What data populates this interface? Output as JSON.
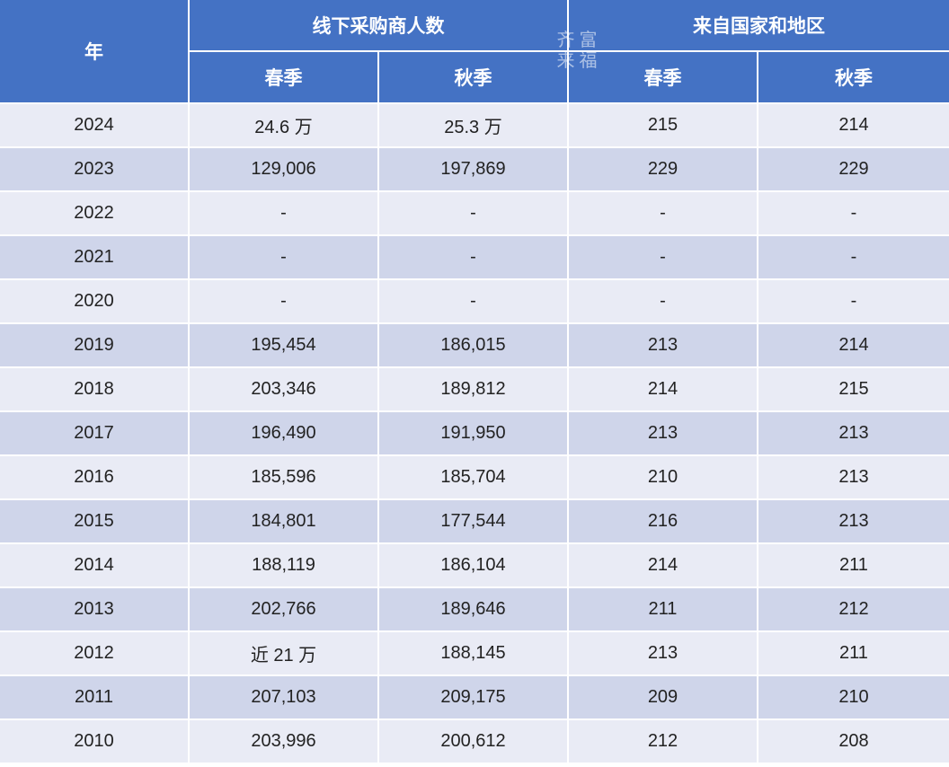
{
  "header": {
    "year": "年",
    "group_buyers": "线下采购商人数",
    "group_countries": "来自国家和地区",
    "spring": "春季",
    "autumn": "秋季"
  },
  "watermark": [
    "齐",
    "富",
    "来",
    "福"
  ],
  "rows": [
    {
      "year": "2024",
      "buyers_spring": "24.6 万",
      "buyers_autumn": "25.3 万",
      "countries_spring": "215",
      "countries_autumn": "214"
    },
    {
      "year": "2023",
      "buyers_spring": "129,006",
      "buyers_autumn": "197,869",
      "countries_spring": "229",
      "countries_autumn": "229"
    },
    {
      "year": "2022",
      "buyers_spring": "-",
      "buyers_autumn": "-",
      "countries_spring": "-",
      "countries_autumn": "-"
    },
    {
      "year": "2021",
      "buyers_spring": "-",
      "buyers_autumn": "-",
      "countries_spring": "-",
      "countries_autumn": "-"
    },
    {
      "year": "2020",
      "buyers_spring": "-",
      "buyers_autumn": "-",
      "countries_spring": "-",
      "countries_autumn": "-"
    },
    {
      "year": "2019",
      "buyers_spring": "195,454",
      "buyers_autumn": "186,015",
      "countries_spring": "213",
      "countries_autumn": "214"
    },
    {
      "year": "2018",
      "buyers_spring": "203,346",
      "buyers_autumn": "189,812",
      "countries_spring": "214",
      "countries_autumn": "215"
    },
    {
      "year": "2017",
      "buyers_spring": "196,490",
      "buyers_autumn": "191,950",
      "countries_spring": "213",
      "countries_autumn": "213"
    },
    {
      "year": "2016",
      "buyers_spring": "185,596",
      "buyers_autumn": "185,704",
      "countries_spring": "210",
      "countries_autumn": "213"
    },
    {
      "year": "2015",
      "buyers_spring": "184,801",
      "buyers_autumn": "177,544",
      "countries_spring": "216",
      "countries_autumn": "213"
    },
    {
      "year": "2014",
      "buyers_spring": "188,119",
      "buyers_autumn": "186,104",
      "countries_spring": "214",
      "countries_autumn": "211"
    },
    {
      "year": "2013",
      "buyers_spring": "202,766",
      "buyers_autumn": "189,646",
      "countries_spring": "211",
      "countries_autumn": "212"
    },
    {
      "year": "2012",
      "buyers_spring": "近 21 万",
      "buyers_autumn": "188,145",
      "countries_spring": "213",
      "countries_autumn": "211"
    },
    {
      "year": "2011",
      "buyers_spring": "207,103",
      "buyers_autumn": "209,175",
      "countries_spring": "209",
      "countries_autumn": "210"
    },
    {
      "year": "2010",
      "buyers_spring": "203,996",
      "buyers_autumn": "200,612",
      "countries_spring": "212",
      "countries_autumn": "208"
    }
  ]
}
